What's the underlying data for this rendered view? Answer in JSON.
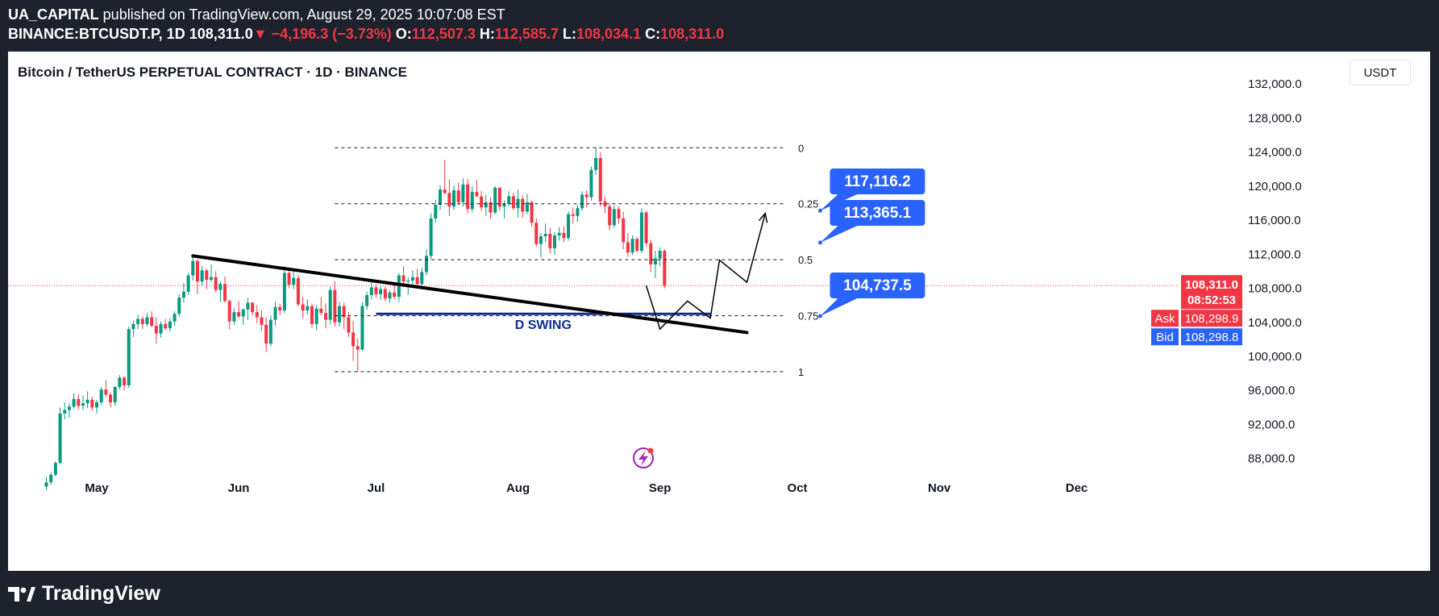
{
  "header": {
    "published": "UA_CAPITAL published on TradingView.com, August 29, 2025 10:07:08 EST",
    "author": "UA_CAPITAL",
    "published_rest": " published on TradingView.com, August 29, 2025 10:07:08 EST",
    "symbol": "BINANCE:BTCUSDT.P, 1D",
    "last": "108,311.0",
    "change": "−4,196.3 (−3.73%)",
    "o_label": "O:",
    "o": "112,507.3",
    "h_label": "H:",
    "h": "112,585.7",
    "l_label": "L:",
    "l": "108,034.1",
    "c_label": "C:",
    "c": "108,311.0"
  },
  "chart_title": "Bitcoin / TetherUS PERPETUAL CONTRACT · 1D · BINANCE",
  "currency_button": "USDT",
  "footer": {
    "brand": "TradingView"
  },
  "colors": {
    "up": "#089981",
    "down": "#f23645",
    "blue": "#2962ff",
    "navy": "#0d2e91",
    "bg": "#1e222d"
  },
  "chart_data": {
    "type": "candlestick",
    "title": "Bitcoin / TetherUS PERPETUAL CONTRACT · 1D · BINANCE",
    "ylim": [
      84000,
      133000
    ],
    "y_ticks": [
      "88,000.0",
      "92,000.0",
      "96,000.0",
      "100,000.0",
      "104,000.0",
      "108,000.0",
      "112,000.0",
      "116,000.0",
      "120,000.0",
      "124,000.0",
      "128,000.0",
      "132,000.0"
    ],
    "y_tick_values": [
      88000,
      92000,
      96000,
      100000,
      104000,
      108000,
      112000,
      116000,
      120000,
      124000,
      128000,
      132000
    ],
    "x_labels": [
      "May",
      "Jun",
      "Jul",
      "Aug",
      "Sep",
      "Oct",
      "Nov",
      "Dec"
    ],
    "x_label_dates": [
      "2025-05-01",
      "2025-06-01",
      "2025-07-01",
      "2025-08-01",
      "2025-09-01",
      "2025-10-01",
      "2025-11-01",
      "2025-12-01"
    ],
    "price_labels": {
      "last": "108,311.0",
      "last_value": 108311,
      "countdown": "08:52:53",
      "ask_label": "Ask",
      "ask": "108,298.9",
      "bid_label": "Bid",
      "bid": "108,298.8"
    },
    "fib": {
      "high": 124500,
      "low": 98200,
      "start_date": "2025-06-22",
      "end_date": "2025-09-28",
      "levels": [
        {
          "ratio": 0,
          "label": "0"
        },
        {
          "ratio": 0.25,
          "label": "0.25"
        },
        {
          "ratio": 0.5,
          "label": "0.5"
        },
        {
          "ratio": 0.75,
          "label": "0.75"
        },
        {
          "ratio": 1,
          "label": "1"
        }
      ]
    },
    "callouts": [
      {
        "text": "117,116.2",
        "value": 117116.2,
        "date": "2025-10-06"
      },
      {
        "text": "113,365.1",
        "value": 113365.1,
        "date": "2025-10-06"
      },
      {
        "text": "104,737.5",
        "value": 104737.5,
        "date": "2025-10-06"
      }
    ],
    "trendline": {
      "start": {
        "date": "2025-05-22",
        "value": 111800
      },
      "end": {
        "date": "2025-09-20",
        "value": 102800
      }
    },
    "dswing": {
      "label": "D SWING",
      "value": 105000,
      "start_date": "2025-07-01",
      "end_date": "2025-09-12"
    },
    "projection": [
      {
        "date": "2025-08-29",
        "value": 108311
      },
      {
        "date": "2025-09-01",
        "value": 103200
      },
      {
        "date": "2025-09-07",
        "value": 106500
      },
      {
        "date": "2025-09-12",
        "value": 104500
      },
      {
        "date": "2025-09-14",
        "value": 111300
      },
      {
        "date": "2025-09-20",
        "value": 108700
      },
      {
        "date": "2025-09-24",
        "value": 116800
      }
    ],
    "candles": {
      "start_date": "2025-04-20",
      "ohlc": [
        [
          84700,
          85800,
          84300,
          85200
        ],
        [
          85200,
          86400,
          84900,
          86100
        ],
        [
          86100,
          87700,
          85900,
          87500
        ],
        [
          87500,
          94000,
          87300,
          93300
        ],
        [
          93300,
          94600,
          92600,
          93700
        ],
        [
          93700,
          94500,
          92800,
          94100
        ],
        [
          94100,
          95700,
          93900,
          95000
        ],
        [
          95000,
          95500,
          93800,
          94200
        ],
        [
          94200,
          95400,
          93700,
          94500
        ],
        [
          94500,
          95900,
          93900,
          94900
        ],
        [
          94900,
          95300,
          93600,
          94000
        ],
        [
          94000,
          94900,
          93300,
          94600
        ],
        [
          94600,
          96400,
          94300,
          96100
        ],
        [
          96100,
          97200,
          95200,
          95500
        ],
        [
          95500,
          95800,
          94000,
          94600
        ],
        [
          94600,
          96500,
          94200,
          96400
        ],
        [
          96400,
          97800,
          96100,
          97500
        ],
        [
          97500,
          97700,
          96000,
          96600
        ],
        [
          96600,
          103500,
          96300,
          103200
        ],
        [
          103200,
          104200,
          102300,
          103800
        ],
        [
          103800,
          104900,
          103200,
          104400
        ],
        [
          104400,
          104700,
          103200,
          103800
        ],
        [
          103800,
          105100,
          103500,
          104600
        ],
        [
          104600,
          105300,
          103400,
          103600
        ],
        [
          103600,
          104600,
          101500,
          102700
        ],
        [
          102700,
          104100,
          102200,
          103800
        ],
        [
          103800,
          104400,
          103100,
          103300
        ],
        [
          103300,
          104500,
          102900,
          104100
        ],
        [
          104100,
          105300,
          103600,
          105000
        ],
        [
          105000,
          107300,
          104700,
          106900
        ],
        [
          106900,
          108600,
          106300,
          107600
        ],
        [
          107600,
          109800,
          107200,
          109500
        ],
        [
          109500,
          111900,
          108900,
          111200
        ],
        [
          111200,
          111400,
          107300,
          108800
        ],
        [
          108800,
          110600,
          108300,
          110100
        ],
        [
          110100,
          110300,
          107900,
          109000
        ],
        [
          109000,
          110800,
          108700,
          109300
        ],
        [
          109300,
          110000,
          107500,
          107800
        ],
        [
          107800,
          108800,
          106400,
          108500
        ],
        [
          108500,
          109400,
          106300,
          106500
        ],
        [
          106500,
          106700,
          103200,
          104100
        ],
        [
          104100,
          105600,
          103700,
          105200
        ],
        [
          105200,
          106500,
          104500,
          104700
        ],
        [
          104700,
          105700,
          103700,
          105500
        ],
        [
          105500,
          106900,
          104300,
          106300
        ],
        [
          106300,
          106400,
          104800,
          105200
        ],
        [
          105200,
          106000,
          103900,
          104600
        ],
        [
          104600,
          105400,
          103000,
          103700
        ],
        [
          103700,
          104600,
          100500,
          101500
        ],
        [
          101500,
          104800,
          101200,
          104300
        ],
        [
          104300,
          106400,
          103600,
          105800
        ],
        [
          105800,
          106200,
          104800,
          105400
        ],
        [
          105400,
          110600,
          105100,
          109800
        ],
        [
          109800,
          110400,
          108000,
          108400
        ],
        [
          108400,
          110300,
          107900,
          109200
        ],
        [
          109200,
          109600,
          105900,
          106100
        ],
        [
          106100,
          107000,
          104500,
          105400
        ],
        [
          105400,
          106700,
          104900,
          105900
        ],
        [
          105900,
          106200,
          103400,
          103800
        ],
        [
          103800,
          106000,
          103100,
          105600
        ],
        [
          105600,
          107000,
          104800,
          105100
        ],
        [
          105100,
          106200,
          103300,
          104300
        ],
        [
          104300,
          108200,
          103800,
          107800
        ],
        [
          107800,
          108800,
          103500,
          104000
        ],
        [
          104000,
          106400,
          103500,
          105900
        ],
        [
          105900,
          106300,
          103200,
          104600
        ],
        [
          104600,
          105200,
          102300,
          102800
        ],
        [
          102800,
          104200,
          99500,
          101200
        ],
        [
          101200,
          102100,
          98200,
          100800
        ],
        [
          100800,
          106400,
          100600,
          105900
        ],
        [
          105900,
          107600,
          105500,
          107200
        ],
        [
          107200,
          108700,
          106700,
          108100
        ],
        [
          108100,
          108500,
          106900,
          107300
        ],
        [
          107300,
          108300,
          106600,
          107900
        ],
        [
          107900,
          108200,
          106500,
          106800
        ],
        [
          106800,
          107800,
          106300,
          107500
        ],
        [
          107500,
          108700,
          106700,
          107000
        ],
        [
          107000,
          109800,
          106400,
          109500
        ],
        [
          109500,
          110600,
          108300,
          108800
        ],
        [
          108800,
          109300,
          107200,
          108900
        ],
        [
          108900,
          110100,
          108400,
          109300
        ],
        [
          109300,
          110300,
          108000,
          108500
        ],
        [
          108500,
          110400,
          107900,
          109900
        ],
        [
          109900,
          112600,
          109500,
          111800
        ],
        [
          111800,
          116800,
          111400,
          116200
        ],
        [
          116200,
          118400,
          115700,
          117800
        ],
        [
          117800,
          120100,
          117200,
          119600
        ],
        [
          119600,
          123100,
          119000,
          119200
        ],
        [
          119200,
          120800,
          116500,
          117600
        ],
        [
          117600,
          120100,
          117200,
          119500
        ],
        [
          119500,
          120400,
          117800,
          118100
        ],
        [
          118100,
          120900,
          117600,
          120200
        ],
        [
          120200,
          120800,
          116800,
          117300
        ],
        [
          117300,
          120000,
          116900,
          119300
        ],
        [
          119300,
          120700,
          118700,
          118800
        ],
        [
          118800,
          119400,
          117100,
          117500
        ],
        [
          117500,
          119000,
          116500,
          118100
        ],
        [
          118100,
          118700,
          116200,
          116900
        ],
        [
          116900,
          120000,
          116700,
          119800
        ],
        [
          119800,
          119900,
          117100,
          117600
        ],
        [
          117600,
          118300,
          116200,
          117900
        ],
        [
          117900,
          119400,
          117600,
          118800
        ],
        [
          118800,
          119200,
          117200,
          117400
        ],
        [
          117400,
          119600,
          116300,
          118500
        ],
        [
          118500,
          118900,
          116300,
          117000
        ],
        [
          117000,
          119100,
          116700,
          118100
        ],
        [
          118100,
          118300,
          115200,
          115700
        ],
        [
          115700,
          116200,
          112900,
          113200
        ],
        [
          113200,
          114500,
          111600,
          114100
        ],
        [
          114100,
          115600,
          113400,
          114400
        ],
        [
          114400,
          115100,
          112100,
          112700
        ],
        [
          112700,
          114600,
          111900,
          114200
        ],
        [
          114200,
          115200,
          113600,
          114500
        ],
        [
          114500,
          115300,
          113400,
          113900
        ],
        [
          113900,
          117000,
          113600,
          116700
        ],
        [
          116700,
          117500,
          115600,
          116500
        ],
        [
          116500,
          117800,
          115800,
          117400
        ],
        [
          117400,
          119400,
          117100,
          119000
        ],
        [
          119000,
          119500,
          117500,
          118700
        ],
        [
          118700,
          122300,
          118300,
          121900
        ],
        [
          121900,
          124500,
          121300,
          123300
        ],
        [
          123300,
          124000,
          117600,
          118200
        ],
        [
          118200,
          118800,
          116800,
          117600
        ],
        [
          117600,
          117900,
          114800,
          115400
        ],
        [
          115400,
          117700,
          115100,
          117300
        ],
        [
          117300,
          117600,
          115600,
          116200
        ],
        [
          116200,
          117000,
          112600,
          113400
        ],
        [
          113400,
          114500,
          111700,
          112200
        ],
        [
          112200,
          114200,
          111900,
          113800
        ],
        [
          113800,
          114000,
          112200,
          112400
        ],
        [
          112400,
          117400,
          112100,
          116900
        ],
        [
          116900,
          117100,
          112900,
          113300
        ],
        [
          113300,
          113700,
          109900,
          110800
        ],
        [
          110800,
          112400,
          109200,
          111500
        ],
        [
          111500,
          112800,
          110600,
          112400
        ],
        [
          112400,
          112600,
          108000,
          108300
        ]
      ]
    }
  }
}
